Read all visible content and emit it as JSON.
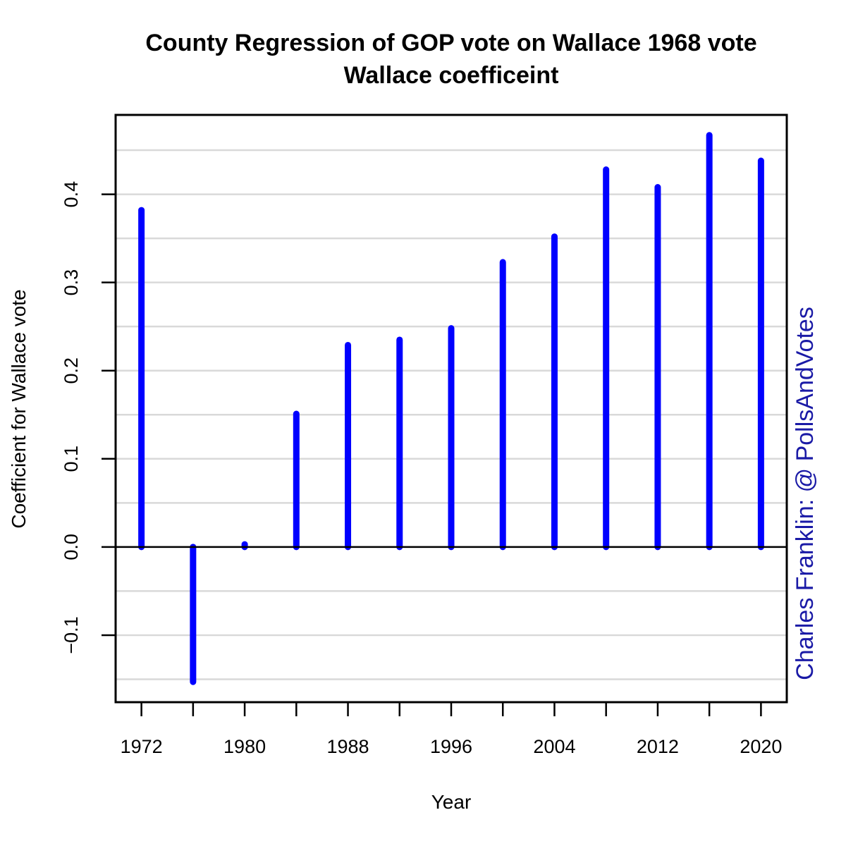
{
  "chart_data": {
    "type": "bar",
    "title": "County Regression of GOP vote on Wallace 1968 vote",
    "subtitle": "Wallace coefficeint",
    "xlabel": "Year",
    "ylabel": "Coefficient for Wallace vote",
    "credit": "Charles Franklin: @ PollsAndVotes",
    "x": [
      1972,
      1976,
      1980,
      1984,
      1988,
      1992,
      1996,
      2000,
      2004,
      2008,
      2012,
      2016,
      2020
    ],
    "values": [
      0.382,
      -0.153,
      0.003,
      0.151,
      0.229,
      0.235,
      0.248,
      0.323,
      0.352,
      0.428,
      0.408,
      0.467,
      0.438
    ],
    "xlim": [
      1970,
      2022
    ],
    "ylim": [
      -0.176,
      0.49
    ],
    "x_tick_positions": [
      1972,
      1976,
      1980,
      1984,
      1988,
      1992,
      1996,
      2000,
      2004,
      2008,
      2012,
      2016,
      2020
    ],
    "x_tick_labels": [
      "1972",
      "1980",
      "1988",
      "1996",
      "2004",
      "2012",
      "2020"
    ],
    "y_ticks": [
      -0.1,
      0.0,
      0.1,
      0.2,
      0.3,
      0.4
    ],
    "y_tick_labels": [
      "−0.1",
      "0.0",
      "0.1",
      "0.2",
      "0.3",
      "0.4"
    ],
    "y_gridlines": [
      -0.15,
      -0.1,
      -0.05,
      0.0,
      0.05,
      0.1,
      0.15,
      0.2,
      0.25,
      0.3,
      0.35,
      0.4,
      0.45
    ],
    "grid": true,
    "bar_color": "#0000ff",
    "credit_color": "#1a1aa6",
    "grid_color": "#d9d9d9"
  }
}
